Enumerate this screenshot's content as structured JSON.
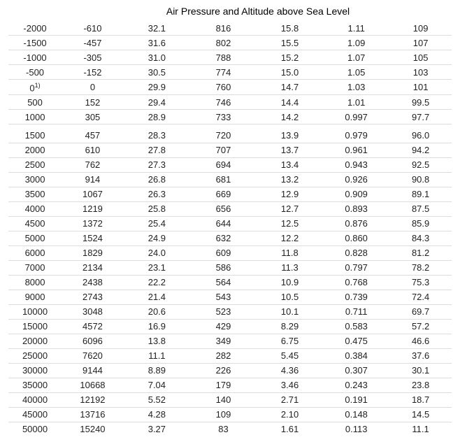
{
  "table": {
    "title": "Air Pressure and Altitude above Sea Level",
    "title_fontsize": 14,
    "background_color": "#ffffff",
    "text_color": "#222222",
    "border_color": "#dddddd",
    "font_family": "Arial",
    "cell_fontsize": 13,
    "column_widths_pct": [
      12,
      14,
      15,
      15,
      15,
      15,
      14
    ],
    "group_break_after_index": 6,
    "superscript_row_index": 4,
    "superscript_text": "1)",
    "rows": [
      [
        "-2000",
        "-610",
        "32.1",
        "816",
        "15.8",
        "1.11",
        "109"
      ],
      [
        "-1500",
        "-457",
        "31.6",
        "802",
        "15.5",
        "1.09",
        "107"
      ],
      [
        "-1000",
        "-305",
        "31.0",
        "788",
        "15.2",
        "1.07",
        "105"
      ],
      [
        "-500",
        "-152",
        "30.5",
        "774",
        "15.0",
        "1.05",
        "103"
      ],
      [
        "0",
        "0",
        "29.9",
        "760",
        "14.7",
        "1.03",
        "101"
      ],
      [
        "500",
        "152",
        "29.4",
        "746",
        "14.4",
        "1.01",
        "99.5"
      ],
      [
        "1000",
        "305",
        "28.9",
        "733",
        "14.2",
        "0.997",
        "97.7"
      ],
      [
        "1500",
        "457",
        "28.3",
        "720",
        "13.9",
        "0.979",
        "96.0"
      ],
      [
        "2000",
        "610",
        "27.8",
        "707",
        "13.7",
        "0.961",
        "94.2"
      ],
      [
        "2500",
        "762",
        "27.3",
        "694",
        "13.4",
        "0.943",
        "92.5"
      ],
      [
        "3000",
        "914",
        "26.8",
        "681",
        "13.2",
        "0.926",
        "90.8"
      ],
      [
        "3500",
        "1067",
        "26.3",
        "669",
        "12.9",
        "0.909",
        "89.1"
      ],
      [
        "4000",
        "1219",
        "25.8",
        "656",
        "12.7",
        "0.893",
        "87.5"
      ],
      [
        "4500",
        "1372",
        "25.4",
        "644",
        "12.5",
        "0.876",
        "85.9"
      ],
      [
        "5000",
        "1524",
        "24.9",
        "632",
        "12.2",
        "0.860",
        "84.3"
      ],
      [
        "6000",
        "1829",
        "24.0",
        "609",
        "11.8",
        "0.828",
        "81.2"
      ],
      [
        "7000",
        "2134",
        "23.1",
        "586",
        "11.3",
        "0.797",
        "78.2"
      ],
      [
        "8000",
        "2438",
        "22.2",
        "564",
        "10.9",
        "0.768",
        "75.3"
      ],
      [
        "9000",
        "2743",
        "21.4",
        "543",
        "10.5",
        "0.739",
        "72.4"
      ],
      [
        "10000",
        "3048",
        "20.6",
        "523",
        "10.1",
        "0.711",
        "69.7"
      ],
      [
        "15000",
        "4572",
        "16.9",
        "429",
        "8.29",
        "0.583",
        "57.2"
      ],
      [
        "20000",
        "6096",
        "13.8",
        "349",
        "6.75",
        "0.475",
        "46.6"
      ],
      [
        "25000",
        "7620",
        "11.1",
        "282",
        "5.45",
        "0.384",
        "37.6"
      ],
      [
        "30000",
        "9144",
        "8.89",
        "226",
        "4.36",
        "0.307",
        "30.1"
      ],
      [
        "35000",
        "10668",
        "7.04",
        "179",
        "3.46",
        "0.243",
        "23.8"
      ],
      [
        "40000",
        "12192",
        "5.52",
        "140",
        "2.71",
        "0.191",
        "18.7"
      ],
      [
        "45000",
        "13716",
        "4.28",
        "109",
        "2.10",
        "0.148",
        "14.5"
      ],
      [
        "50000",
        "15240",
        "3.27",
        "83",
        "1.61",
        "0.113",
        "11.1"
      ]
    ]
  }
}
